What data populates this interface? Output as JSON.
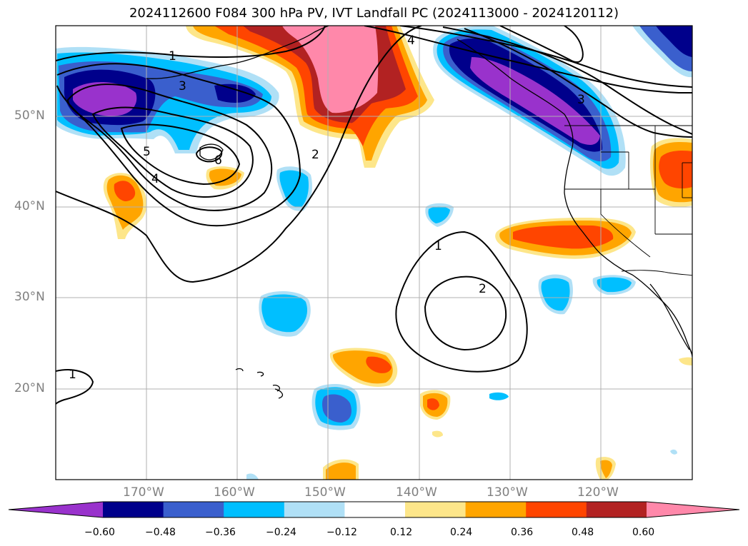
{
  "title": "2024112600 F084 300 hPa PV, IVT Landfall PC (2024113000 - 2024120112)",
  "lat_labels": [
    "50°N",
    "40°N",
    "30°N",
    "20°N"
  ],
  "lon_labels": [
    "170°W",
    "160°W",
    "150°W",
    "140°W",
    "130°W",
    "120°W"
  ],
  "colorbar": {
    "ticks": [
      "−0.60",
      "−0.48",
      "−0.36",
      "−0.24",
      "−0.12",
      "0.12",
      "0.24",
      "0.36",
      "0.48",
      "0.60"
    ],
    "colors": [
      "#9932cc",
      "#00008b",
      "#3a5fcd",
      "#00bfff",
      "#b0e0f6",
      "#ffffff",
      "#fde68a",
      "#ffa500",
      "#ff4500",
      "#b22222",
      "#ff88aa"
    ]
  },
  "contour_labels": [
    "1",
    "4",
    "3",
    "5",
    "4",
    "6",
    "2",
    "1",
    "2",
    "1",
    "3"
  ]
}
